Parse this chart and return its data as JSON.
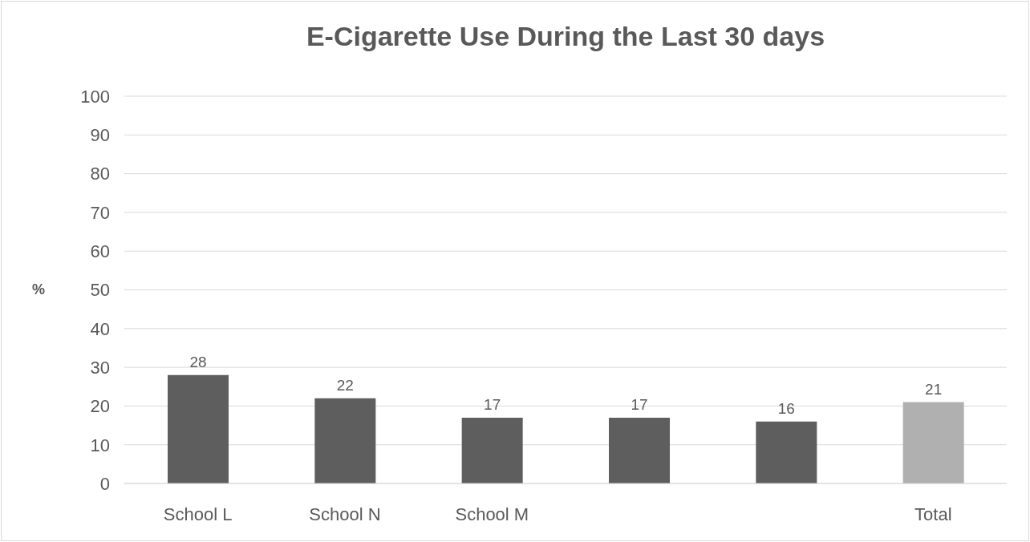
{
  "chart_data": {
    "type": "bar",
    "title": "E-Cigarette Use During the Last 30 days",
    "ylabel": "%",
    "categories": [
      "School L",
      "School N",
      "School M",
      null,
      null,
      "Total"
    ],
    "values": [
      28,
      22,
      17,
      17,
      16,
      21
    ],
    "colors": [
      "#5e5e5e",
      "#5e5e5e",
      "#5e5e5e",
      "#5e5e5e",
      "#5e5e5e",
      "#b0b0b0"
    ],
    "ylim": [
      0,
      100
    ],
    "yticks": [
      0,
      10,
      20,
      30,
      40,
      50,
      60,
      70,
      80,
      90,
      100
    ],
    "grid": "y",
    "data_labels": true
  }
}
